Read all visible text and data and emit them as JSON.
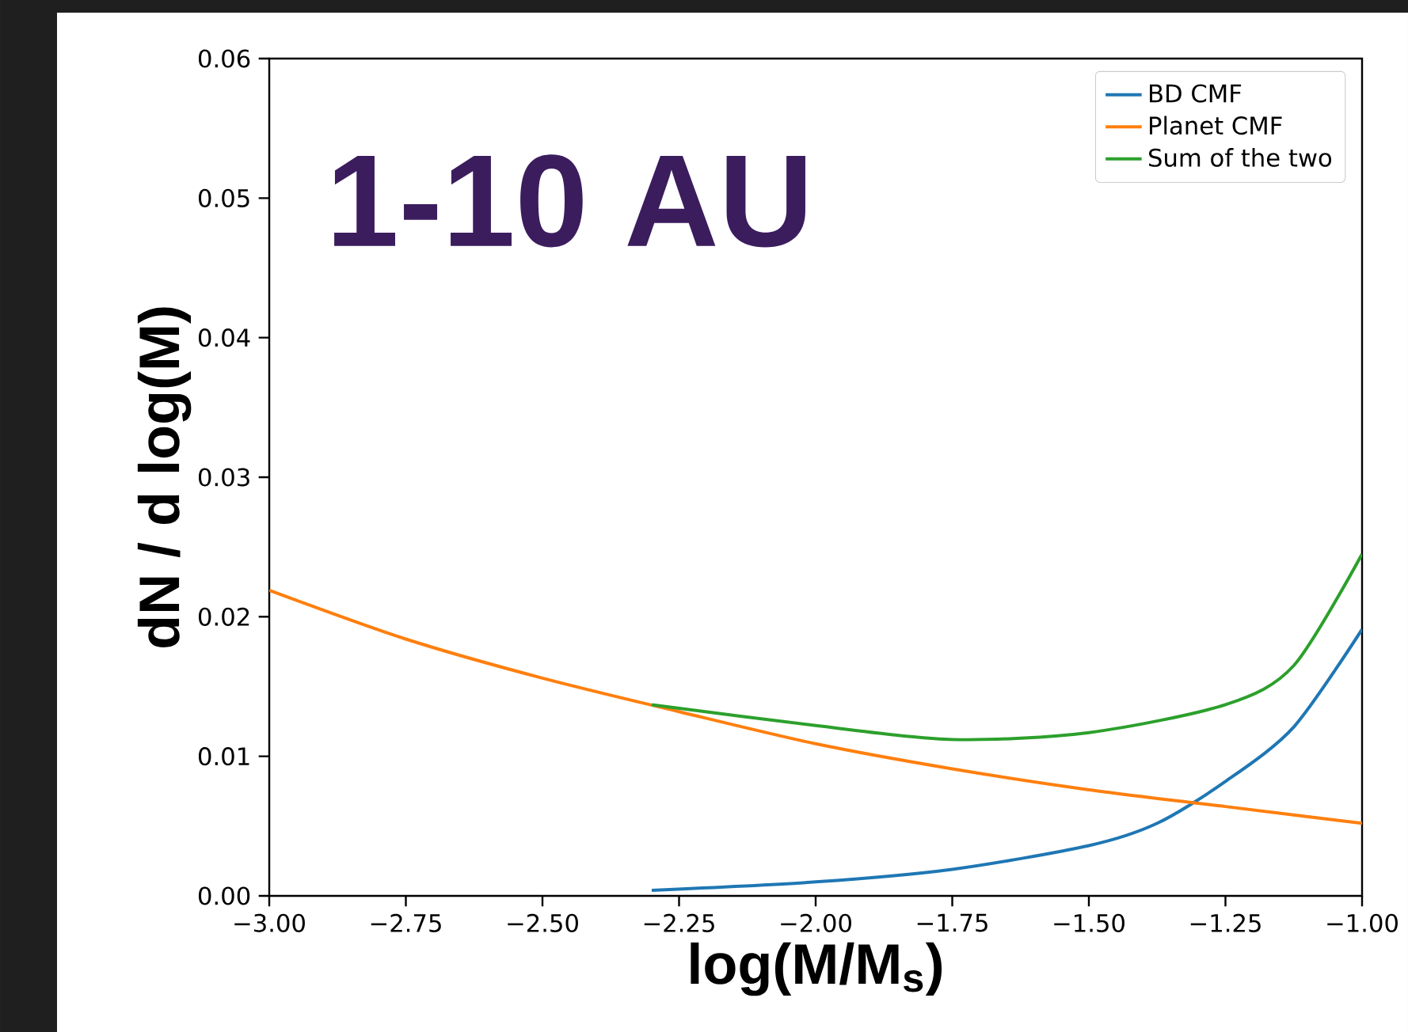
{
  "chart_data": {
    "type": "line",
    "xlabel": "log(M/M$_{s}$)",
    "ylabel": "dN / d log(M)",
    "annotations": [
      "1-10 AU"
    ],
    "xlim": [
      -3.0,
      -1.0
    ],
    "ylim": [
      0.0,
      0.06
    ],
    "xticks": [
      {
        "value": -3.0,
        "label": "−3.00"
      },
      {
        "value": -2.75,
        "label": "−2.75"
      },
      {
        "value": -2.5,
        "label": "−2.50"
      },
      {
        "value": -2.25,
        "label": "−2.25"
      },
      {
        "value": -2.0,
        "label": "−2.00"
      },
      {
        "value": -1.75,
        "label": "−1.75"
      },
      {
        "value": -1.5,
        "label": "−1.50"
      },
      {
        "value": -1.25,
        "label": "−1.25"
      },
      {
        "value": -1.0,
        "label": "−1.00"
      }
    ],
    "yticks": [
      {
        "value": 0.0,
        "label": "0.00"
      },
      {
        "value": 0.01,
        "label": "0.01"
      },
      {
        "value": 0.02,
        "label": "0.02"
      },
      {
        "value": 0.03,
        "label": "0.03"
      },
      {
        "value": 0.04,
        "label": "0.04"
      },
      {
        "value": 0.05,
        "label": "0.05"
      },
      {
        "value": 0.06,
        "label": "0.06"
      }
    ],
    "legend": "top right",
    "grid": false,
    "marker": "none",
    "line_style": "solid",
    "series": [
      {
        "name": "BD CMF",
        "color": "#1f77b4",
        "x": [
          -2.3,
          -2.0,
          -1.75,
          -1.5,
          -1.375,
          -1.25,
          -1.125,
          -1.0
        ],
        "values": [
          0.0004,
          0.001,
          0.0019,
          0.0036,
          0.0052,
          0.0082,
          0.0121,
          0.0191
        ]
      },
      {
        "name": "Planet CMF",
        "color": "#ff7f0e",
        "x": [
          -3.0,
          -2.75,
          -2.5,
          -2.25,
          -2.0,
          -1.75,
          -1.5,
          -1.25,
          -1.125,
          -1.0
        ],
        "values": [
          0.0219,
          0.0184,
          0.0156,
          0.0132,
          0.0109,
          0.0091,
          0.0076,
          0.0064,
          0.0058,
          0.0052
        ]
      },
      {
        "name": "Sum of the two",
        "color": "#2ca02c",
        "x": [
          -2.3,
          -2.0,
          -1.75,
          -1.5,
          -1.25,
          -1.125,
          -1.0
        ],
        "values": [
          0.0137,
          0.0122,
          0.0112,
          0.0117,
          0.0137,
          0.0165,
          0.0245
        ]
      }
    ]
  }
}
